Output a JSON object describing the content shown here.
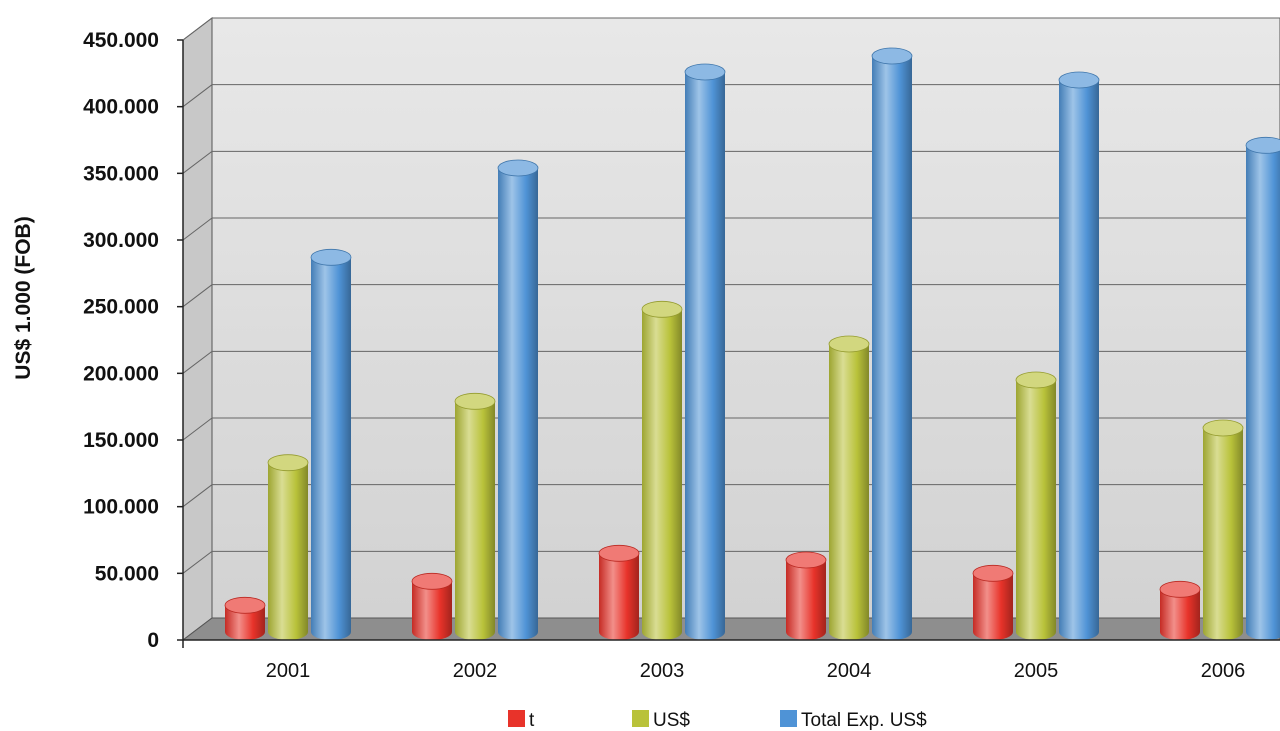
{
  "chart_data": {
    "type": "bar",
    "title": "",
    "xlabel": "",
    "ylabel": "US$ 1.000 (FOB)",
    "ylim": [
      0,
      450000
    ],
    "yticks": [
      0,
      50000,
      100000,
      150000,
      200000,
      250000,
      300000,
      350000,
      400000,
      450000
    ],
    "ytick_labels": [
      "0",
      "50.000",
      "100.000",
      "150.000",
      "200.000",
      "250.000",
      "300.000",
      "350.000",
      "400.000",
      "450.000"
    ],
    "categories": [
      "2001",
      "2002",
      "2003",
      "2004",
      "2005",
      "2006"
    ],
    "grid": true,
    "legend_position": "bottom",
    "series": [
      {
        "name": "t",
        "color": "#e8332a",
        "values": [
          20000,
          38000,
          59000,
          54000,
          44000,
          32000
        ]
      },
      {
        "name": "US$",
        "color": "#b9c23a",
        "values": [
          127000,
          173000,
          242000,
          216000,
          189000,
          153000
        ]
      },
      {
        "name": "Total Exp. US$",
        "color": "#4f93d6",
        "values": [
          281000,
          348000,
          420000,
          432000,
          414000,
          365000
        ]
      }
    ]
  }
}
